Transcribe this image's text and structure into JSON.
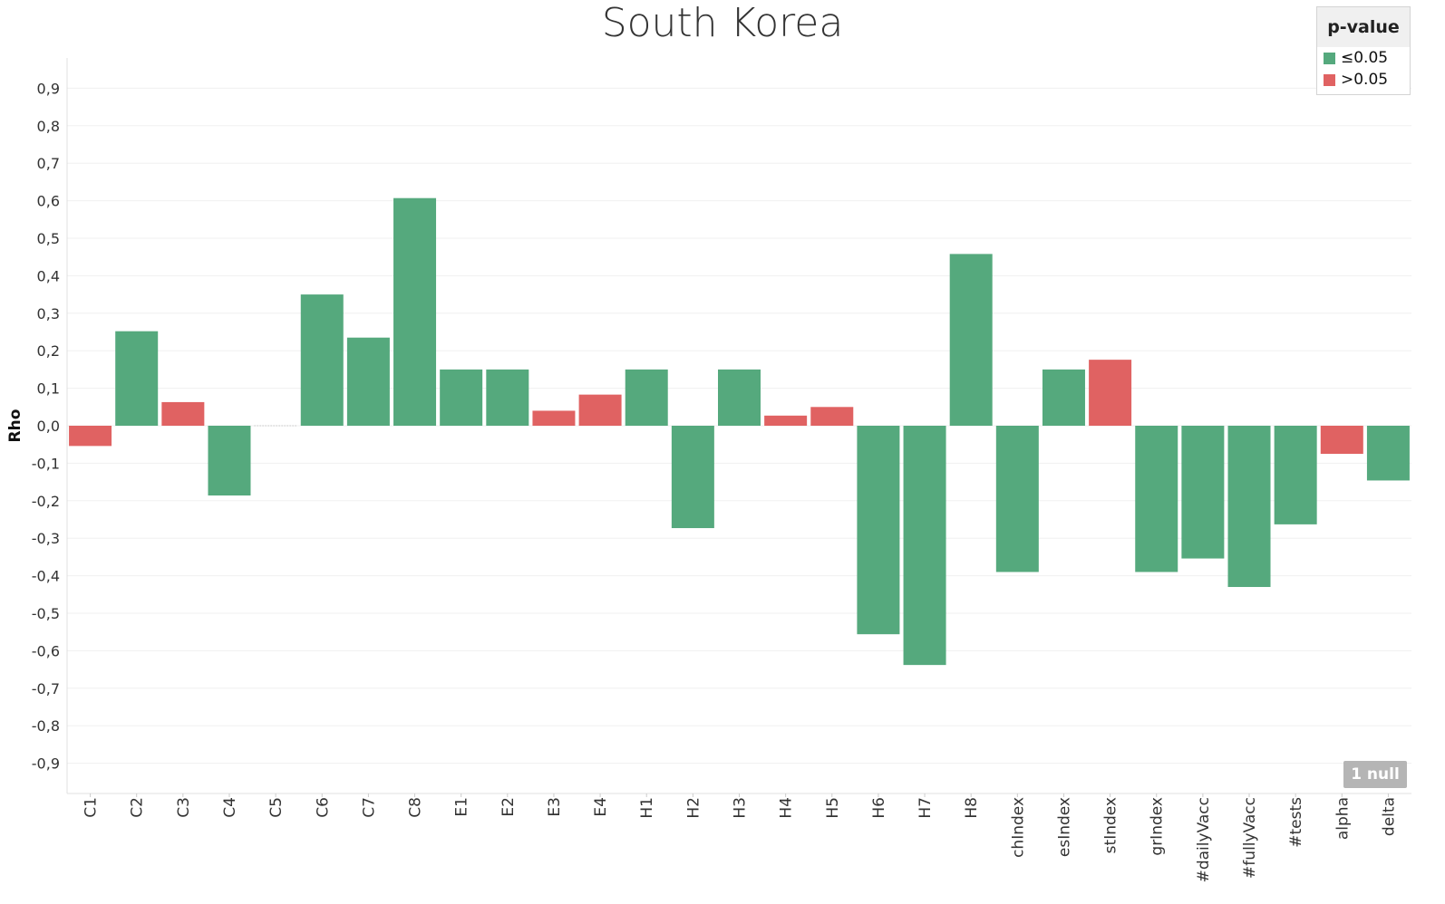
{
  "chart_data": {
    "type": "bar",
    "title": "South Korea",
    "ylabel": "Rho",
    "xlabel": "",
    "ylim": [
      -0.97,
      0.98
    ],
    "yticks": [
      0.9,
      0.8,
      0.7,
      0.6,
      0.5,
      0.4,
      0.3,
      0.2,
      0.1,
      0.0,
      -0.1,
      -0.2,
      -0.3,
      -0.4,
      -0.5,
      -0.6,
      -0.7,
      -0.8,
      -0.9
    ],
    "ytick_labels": [
      "0,9",
      "0,8",
      "0,7",
      "0,6",
      "0,5",
      "0,4",
      "0,3",
      "0,2",
      "0,1",
      "0,0",
      "-0,1",
      "-0,2",
      "-0,3",
      "-0,4",
      "-0,5",
      "-0,6",
      "-0,7",
      "-0,8",
      "-0,9"
    ],
    "grid": true,
    "categories": [
      "C1",
      "C2",
      "C3",
      "C4",
      "C5",
      "C6",
      "C7",
      "C8",
      "E1",
      "E2",
      "E3",
      "E4",
      "H1",
      "H2",
      "H3",
      "H4",
      "H5",
      "H6",
      "H7",
      "H8",
      "chIndex",
      "esIndex",
      "stIndex",
      "grIndex",
      "#dailyVacc",
      "#fullyVacc",
      "#tests",
      "alpha",
      "delta"
    ],
    "values": [
      -0.054,
      0.252,
      0.063,
      -0.186,
      null,
      0.35,
      0.235,
      0.607,
      0.15,
      0.15,
      0.04,
      0.083,
      0.15,
      -0.273,
      0.15,
      0.027,
      0.05,
      -0.556,
      -0.638,
      0.458,
      -0.39,
      0.15,
      0.176,
      -0.39,
      -0.354,
      -0.43,
      -0.263,
      -0.075,
      -0.146
    ],
    "significance": [
      "high",
      "low",
      "high",
      "low",
      "none",
      "low",
      "low",
      "low",
      "low",
      "low",
      "high",
      "high",
      "low",
      "low",
      "low",
      "high",
      "high",
      "low",
      "low",
      "low",
      "low",
      "low",
      "high",
      "low",
      "low",
      "low",
      "low",
      "high",
      "low"
    ],
    "legend": {
      "title": "p-value",
      "position": "top-right",
      "items": [
        {
          "key": "low",
          "label": "≤0.05",
          "color": "#55a97d"
        },
        {
          "key": "high",
          "label": ">0.05",
          "color": "#e06262"
        }
      ]
    },
    "null_indicator": "1 null"
  }
}
